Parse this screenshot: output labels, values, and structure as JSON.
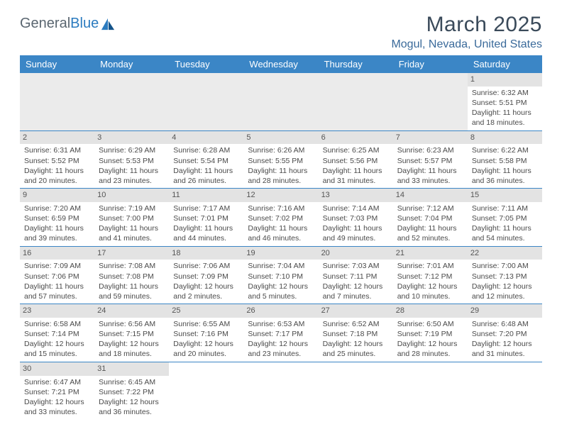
{
  "brand": {
    "name_part1": "General",
    "name_part2": "Blue"
  },
  "title": "March 2025",
  "location": "Mogul, Nevada, United States",
  "colors": {
    "header_bg": "#3b86c6",
    "header_text": "#ffffff",
    "daynum_bg": "#e3e3e3",
    "border": "#3b86c6",
    "title_color": "#3a4a5a",
    "location_color": "#3a6a9a",
    "logo_gray": "#5a6670",
    "logo_blue": "#2b7bbf",
    "body_text": "#4a4a4a"
  },
  "weekday_labels": [
    "Sunday",
    "Monday",
    "Tuesday",
    "Wednesday",
    "Thursday",
    "Friday",
    "Saturday"
  ],
  "weeks": [
    [
      null,
      null,
      null,
      null,
      null,
      null,
      {
        "n": "1",
        "sunrise": "Sunrise: 6:32 AM",
        "sunset": "Sunset: 5:51 PM",
        "daylight": "Daylight: 11 hours and 18 minutes."
      }
    ],
    [
      {
        "n": "2",
        "sunrise": "Sunrise: 6:31 AM",
        "sunset": "Sunset: 5:52 PM",
        "daylight": "Daylight: 11 hours and 20 minutes."
      },
      {
        "n": "3",
        "sunrise": "Sunrise: 6:29 AM",
        "sunset": "Sunset: 5:53 PM",
        "daylight": "Daylight: 11 hours and 23 minutes."
      },
      {
        "n": "4",
        "sunrise": "Sunrise: 6:28 AM",
        "sunset": "Sunset: 5:54 PM",
        "daylight": "Daylight: 11 hours and 26 minutes."
      },
      {
        "n": "5",
        "sunrise": "Sunrise: 6:26 AM",
        "sunset": "Sunset: 5:55 PM",
        "daylight": "Daylight: 11 hours and 28 minutes."
      },
      {
        "n": "6",
        "sunrise": "Sunrise: 6:25 AM",
        "sunset": "Sunset: 5:56 PM",
        "daylight": "Daylight: 11 hours and 31 minutes."
      },
      {
        "n": "7",
        "sunrise": "Sunrise: 6:23 AM",
        "sunset": "Sunset: 5:57 PM",
        "daylight": "Daylight: 11 hours and 33 minutes."
      },
      {
        "n": "8",
        "sunrise": "Sunrise: 6:22 AM",
        "sunset": "Sunset: 5:58 PM",
        "daylight": "Daylight: 11 hours and 36 minutes."
      }
    ],
    [
      {
        "n": "9",
        "sunrise": "Sunrise: 7:20 AM",
        "sunset": "Sunset: 6:59 PM",
        "daylight": "Daylight: 11 hours and 39 minutes."
      },
      {
        "n": "10",
        "sunrise": "Sunrise: 7:19 AM",
        "sunset": "Sunset: 7:00 PM",
        "daylight": "Daylight: 11 hours and 41 minutes."
      },
      {
        "n": "11",
        "sunrise": "Sunrise: 7:17 AM",
        "sunset": "Sunset: 7:01 PM",
        "daylight": "Daylight: 11 hours and 44 minutes."
      },
      {
        "n": "12",
        "sunrise": "Sunrise: 7:16 AM",
        "sunset": "Sunset: 7:02 PM",
        "daylight": "Daylight: 11 hours and 46 minutes."
      },
      {
        "n": "13",
        "sunrise": "Sunrise: 7:14 AM",
        "sunset": "Sunset: 7:03 PM",
        "daylight": "Daylight: 11 hours and 49 minutes."
      },
      {
        "n": "14",
        "sunrise": "Sunrise: 7:12 AM",
        "sunset": "Sunset: 7:04 PM",
        "daylight": "Daylight: 11 hours and 52 minutes."
      },
      {
        "n": "15",
        "sunrise": "Sunrise: 7:11 AM",
        "sunset": "Sunset: 7:05 PM",
        "daylight": "Daylight: 11 hours and 54 minutes."
      }
    ],
    [
      {
        "n": "16",
        "sunrise": "Sunrise: 7:09 AM",
        "sunset": "Sunset: 7:06 PM",
        "daylight": "Daylight: 11 hours and 57 minutes."
      },
      {
        "n": "17",
        "sunrise": "Sunrise: 7:08 AM",
        "sunset": "Sunset: 7:08 PM",
        "daylight": "Daylight: 11 hours and 59 minutes."
      },
      {
        "n": "18",
        "sunrise": "Sunrise: 7:06 AM",
        "sunset": "Sunset: 7:09 PM",
        "daylight": "Daylight: 12 hours and 2 minutes."
      },
      {
        "n": "19",
        "sunrise": "Sunrise: 7:04 AM",
        "sunset": "Sunset: 7:10 PM",
        "daylight": "Daylight: 12 hours and 5 minutes."
      },
      {
        "n": "20",
        "sunrise": "Sunrise: 7:03 AM",
        "sunset": "Sunset: 7:11 PM",
        "daylight": "Daylight: 12 hours and 7 minutes."
      },
      {
        "n": "21",
        "sunrise": "Sunrise: 7:01 AM",
        "sunset": "Sunset: 7:12 PM",
        "daylight": "Daylight: 12 hours and 10 minutes."
      },
      {
        "n": "22",
        "sunrise": "Sunrise: 7:00 AM",
        "sunset": "Sunset: 7:13 PM",
        "daylight": "Daylight: 12 hours and 12 minutes."
      }
    ],
    [
      {
        "n": "23",
        "sunrise": "Sunrise: 6:58 AM",
        "sunset": "Sunset: 7:14 PM",
        "daylight": "Daylight: 12 hours and 15 minutes."
      },
      {
        "n": "24",
        "sunrise": "Sunrise: 6:56 AM",
        "sunset": "Sunset: 7:15 PM",
        "daylight": "Daylight: 12 hours and 18 minutes."
      },
      {
        "n": "25",
        "sunrise": "Sunrise: 6:55 AM",
        "sunset": "Sunset: 7:16 PM",
        "daylight": "Daylight: 12 hours and 20 minutes."
      },
      {
        "n": "26",
        "sunrise": "Sunrise: 6:53 AM",
        "sunset": "Sunset: 7:17 PM",
        "daylight": "Daylight: 12 hours and 23 minutes."
      },
      {
        "n": "27",
        "sunrise": "Sunrise: 6:52 AM",
        "sunset": "Sunset: 7:18 PM",
        "daylight": "Daylight: 12 hours and 25 minutes."
      },
      {
        "n": "28",
        "sunrise": "Sunrise: 6:50 AM",
        "sunset": "Sunset: 7:19 PM",
        "daylight": "Daylight: 12 hours and 28 minutes."
      },
      {
        "n": "29",
        "sunrise": "Sunrise: 6:48 AM",
        "sunset": "Sunset: 7:20 PM",
        "daylight": "Daylight: 12 hours and 31 minutes."
      }
    ],
    [
      {
        "n": "30",
        "sunrise": "Sunrise: 6:47 AM",
        "sunset": "Sunset: 7:21 PM",
        "daylight": "Daylight: 12 hours and 33 minutes."
      },
      {
        "n": "31",
        "sunrise": "Sunrise: 6:45 AM",
        "sunset": "Sunset: 7:22 PM",
        "daylight": "Daylight: 12 hours and 36 minutes."
      },
      null,
      null,
      null,
      null,
      null
    ]
  ]
}
